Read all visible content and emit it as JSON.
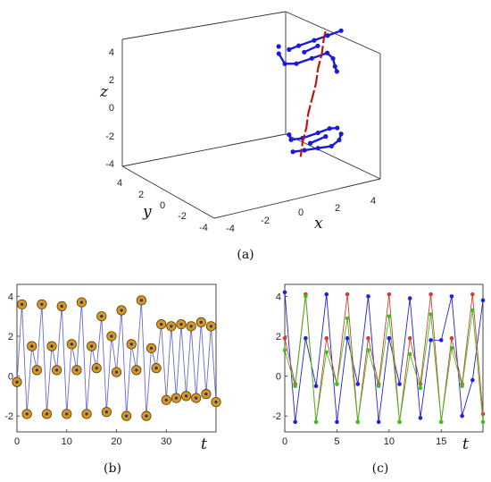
{
  "panel_labels": [
    "(a)",
    "(b)",
    "(c)"
  ],
  "chart_data": [
    {
      "panel": "(a)",
      "type": "scatter",
      "xlabel": "x",
      "ylabel": "y",
      "zlabel": "z",
      "x_ticks": [
        "-4",
        "-2",
        "0",
        "2",
        "4"
      ],
      "y_ticks": [
        "4",
        "2",
        "0",
        "-2",
        "-4"
      ],
      "z_ticks": [
        "4",
        "2",
        "0",
        "-2",
        "-4"
      ],
      "xlim": [
        -4,
        4
      ],
      "ylim": [
        -4,
        4
      ],
      "zlim": [
        -4,
        4
      ],
      "grid": false,
      "series": [
        {
          "color": "#1a1adb",
          "points": [
            [
              0.5,
              0.0,
              3.9
            ],
            [
              1.0,
              0.0,
              4.0
            ],
            [
              1.8,
              0.0,
              4.1
            ],
            [
              2.5,
              0.0,
              4.2
            ],
            [
              3.2,
              0.0,
              4.3
            ],
            [
              0.5,
              0.5,
              3.2
            ],
            [
              0.6,
              0.3,
              2.6
            ],
            [
              1.2,
              0.3,
              2.4
            ],
            [
              2.0,
              0.3,
              2.5
            ],
            [
              2.8,
              0.3,
              2.6
            ],
            [
              3.1,
              0.3,
              2.1
            ],
            [
              3.2,
              0.3,
              1.5
            ],
            [
              3.3,
              0.3,
              1.1
            ],
            [
              0.6,
              0.6,
              3.6
            ],
            [
              1.5,
              0.2,
              3.2
            ],
            [
              2.2,
              0.2,
              3.4
            ],
            [
              0.5,
              0.0,
              -2.2
            ],
            [
              0.6,
              0.0,
              -2.6
            ],
            [
              1.2,
              0.0,
              -2.7
            ],
            [
              2.0,
              0.0,
              -2.6
            ],
            [
              2.6,
              0.0,
              -2.5
            ],
            [
              3.0,
              0.0,
              -2.6
            ],
            [
              0.7,
              0.0,
              -3.5
            ],
            [
              1.3,
              0.0,
              -3.6
            ],
            [
              2.0,
              0.0,
              -3.7
            ],
            [
              2.7,
              0.0,
              -3.8
            ],
            [
              3.1,
              0.0,
              -3.5
            ],
            [
              3.2,
              0.0,
              -3.1
            ],
            [
              1.6,
              0.0,
              -3.2
            ],
            [
              2.4,
              0.0,
              -3.0
            ]
          ]
        },
        {
          "color": "#c01414",
          "points": [
            [
              1.1,
              0.0,
              -4.0
            ],
            [
              1.2,
              0.0,
              -3.0
            ],
            [
              1.4,
              0.0,
              -2.0
            ],
            [
              1.5,
              0.0,
              -1.0
            ],
            [
              1.7,
              0.0,
              0.0
            ],
            [
              1.9,
              0.0,
              1.0
            ],
            [
              2.0,
              0.0,
              2.0
            ],
            [
              2.2,
              0.0,
              3.0
            ],
            [
              2.3,
              0.0,
              4.0
            ],
            [
              2.4,
              0.0,
              4.6
            ]
          ]
        }
      ]
    },
    {
      "panel": "(b)",
      "type": "line",
      "xlabel": "t",
      "ylabel": "",
      "xlim": [
        0,
        40
      ],
      "ylim": [
        -2.8,
        4.6
      ],
      "x_ticks": [
        "0",
        "10",
        "20",
        "30"
      ],
      "y_ticks": [
        "4",
        "2",
        "0",
        "-2"
      ],
      "grid": false,
      "series": [
        {
          "color": "#6a6ad8",
          "marker_color": "#d69a1a",
          "x": [
            0,
            1,
            2,
            3,
            4,
            5,
            6,
            7,
            8,
            9,
            10,
            11,
            12,
            13,
            14,
            15,
            16,
            17,
            18,
            19,
            20,
            21,
            22,
            23,
            24,
            25,
            26,
            27,
            28,
            29,
            30,
            31,
            32,
            33,
            34,
            35,
            36,
            37,
            38,
            39,
            40
          ],
          "y": [
            -0.3,
            3.6,
            -1.9,
            1.5,
            0.3,
            3.6,
            -1.9,
            1.5,
            0.3,
            3.5,
            -1.9,
            1.6,
            0.3,
            3.7,
            -1.9,
            1.5,
            0.4,
            3.0,
            -1.8,
            2.0,
            0.2,
            3.3,
            -2.0,
            1.6,
            0.3,
            3.8,
            -2.0,
            1.4,
            0.4,
            2.6,
            -1.2,
            2.5,
            -1.1,
            2.6,
            -1.0,
            2.5,
            -1.1,
            2.7,
            -0.9,
            2.5,
            -1.3
          ]
        }
      ]
    },
    {
      "panel": "(c)",
      "type": "line",
      "xlabel": "t",
      "ylabel": "",
      "xlim": [
        0,
        19
      ],
      "ylim": [
        -2.8,
        4.6
      ],
      "x_ticks": [
        "0",
        "5",
        "10",
        "15"
      ],
      "y_ticks": [
        "4",
        "2",
        "0",
        "-2"
      ],
      "grid": false,
      "series": [
        {
          "color": "#2020e0",
          "x": [
            0,
            1,
            2,
            3,
            4,
            5,
            6,
            7,
            8,
            9,
            10,
            11,
            12,
            13,
            14,
            15,
            16,
            17,
            18,
            19
          ],
          "y": [
            4.2,
            -2.3,
            1.9,
            -0.5,
            4.1,
            -2.3,
            1.9,
            -0.4,
            4.0,
            -2.3,
            1.9,
            -0.4,
            3.9,
            -2.1,
            1.8,
            1.8,
            4.0,
            -2.0,
            -0.2,
            3.8
          ]
        },
        {
          "color": "#d04030",
          "x": [
            0,
            1,
            2,
            3,
            4,
            5,
            6,
            7,
            8,
            9,
            10,
            11,
            12,
            13,
            14,
            15,
            16,
            17,
            18,
            19
          ],
          "y": [
            1.9,
            -0.4,
            4.1,
            -2.3,
            1.9,
            -0.4,
            4.1,
            -2.3,
            1.9,
            -0.4,
            4.1,
            -2.3,
            1.9,
            -0.4,
            4.1,
            -2.3,
            1.9,
            -0.4,
            4.1,
            -1.9
          ]
        },
        {
          "color": "#40c020",
          "x": [
            0,
            1,
            2,
            3,
            4,
            5,
            6,
            7,
            8,
            9,
            10,
            11,
            12,
            13,
            14,
            15,
            16,
            17,
            18,
            19
          ],
          "y": [
            1.3,
            -0.5,
            4.0,
            -2.3,
            1.2,
            -0.4,
            2.9,
            -2.3,
            1.3,
            -0.5,
            3.0,
            -2.3,
            1.1,
            -0.6,
            3.1,
            -2.3,
            1.4,
            -0.5,
            3.3,
            -2.3
          ]
        }
      ]
    }
  ]
}
